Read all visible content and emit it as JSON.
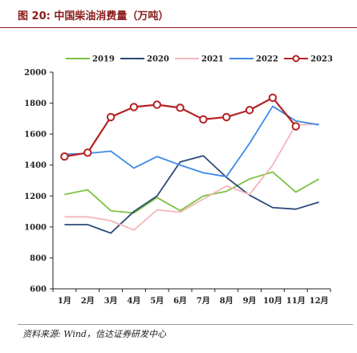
{
  "header": {
    "title": "图 20:  中国柴油消费量（万吨）"
  },
  "footer": {
    "source": "资料来源: Wind，信达证券研发中心"
  },
  "chart_data": {
    "type": "line",
    "title": "中国柴油消费量（万吨）",
    "xlabel": "",
    "ylabel": "",
    "categories": [
      "1月",
      "2月",
      "3月",
      "4月",
      "5月",
      "6月",
      "7月",
      "8月",
      "9月",
      "10月",
      "11月",
      "12月"
    ],
    "ylim": [
      600,
      2000
    ],
    "yticks": [
      600,
      800,
      1000,
      1200,
      1400,
      1600,
      1800,
      2000
    ],
    "grid": false,
    "legend_position": "top",
    "series": [
      {
        "name": "2019",
        "color": "#7dc242",
        "marker": false,
        "values": [
          1210,
          1240,
          1105,
          1090,
          1190,
          1105,
          1200,
          1230,
          1310,
          1355,
          1225,
          1310
        ]
      },
      {
        "name": "2020",
        "color": "#2b4a78",
        "marker": false,
        "values": [
          1015,
          1015,
          960,
          1100,
          1200,
          1420,
          1460,
          1320,
          1205,
          1125,
          1115,
          1160
        ]
      },
      {
        "name": "2021",
        "color": "#f4b6bb",
        "marker": false,
        "values": [
          1065,
          1065,
          1040,
          980,
          1110,
          1095,
          1180,
          1265,
          1210,
          1400,
          1660,
          1665
        ]
      },
      {
        "name": "2022",
        "color": "#3e8ae8",
        "marker": false,
        "values": [
          1470,
          1475,
          1490,
          1380,
          1455,
          1400,
          1350,
          1325,
          1540,
          1780,
          1685,
          1660
        ]
      },
      {
        "name": "2023",
        "color": "#b52225",
        "marker": true,
        "values": [
          1455,
          1480,
          1710,
          1775,
          1790,
          1770,
          1695,
          1710,
          1755,
          1835,
          1650,
          null
        ]
      }
    ]
  }
}
